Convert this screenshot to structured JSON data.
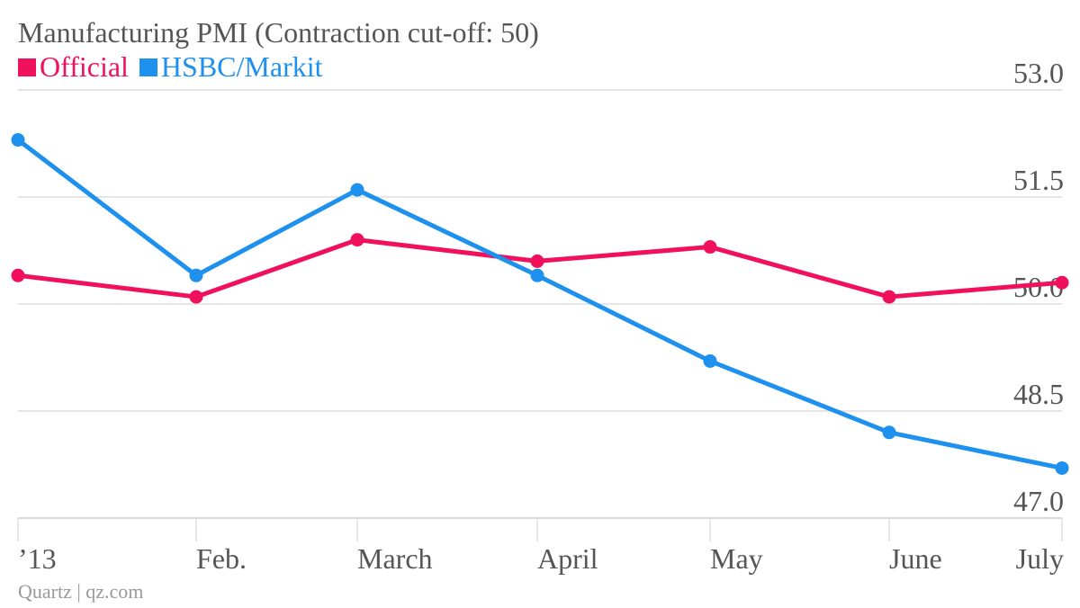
{
  "chart_data": {
    "type": "line",
    "title": "Manufacturing PMI (Contraction cut-off: 50)",
    "categories": [
      "’13",
      "Feb.",
      "March",
      "April",
      "May",
      "June",
      "July"
    ],
    "x": [
      1,
      2,
      3,
      4,
      5,
      6,
      7
    ],
    "series": [
      {
        "name": "Official",
        "color": "#f0105b",
        "values": [
          50.4,
          50.1,
          50.9,
          50.6,
          50.8,
          50.1,
          50.3
        ]
      },
      {
        "name": "HSBC/Markit",
        "color": "#1e90ee",
        "values": [
          52.3,
          50.4,
          51.6,
          50.4,
          49.2,
          48.2,
          47.7
        ]
      }
    ],
    "y_ticks": [
      "53.0",
      "51.5",
      "50.0",
      "48.5",
      "47.0"
    ],
    "ylim": [
      47.0,
      53.0
    ],
    "grid": true,
    "legend": "top-left",
    "source": "Quartz | qz.com"
  }
}
